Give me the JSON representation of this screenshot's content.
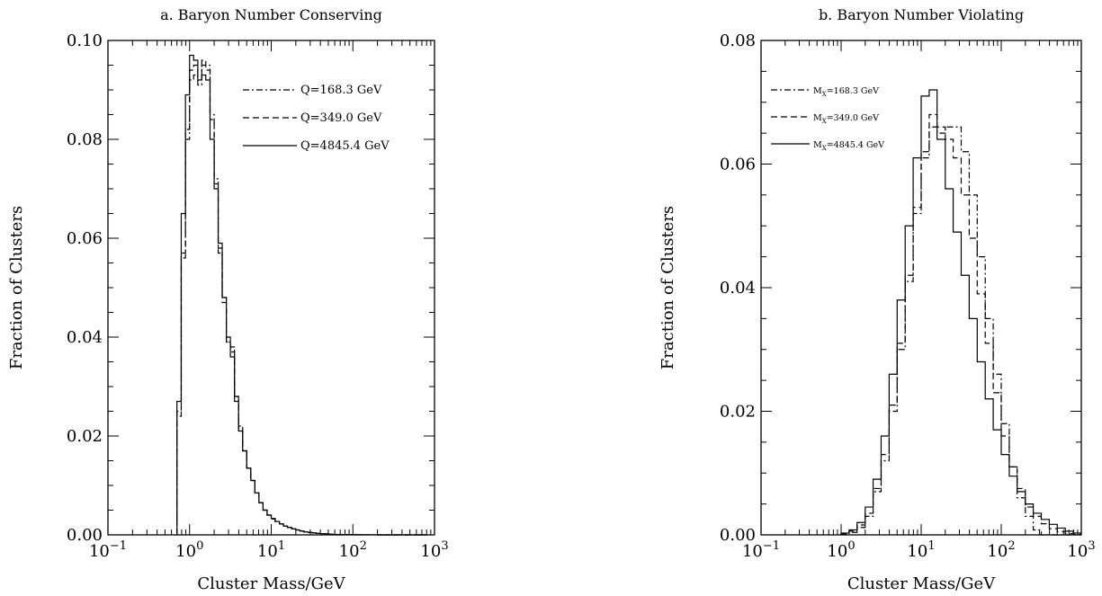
{
  "chart_data": [
    {
      "type": "line",
      "title": "a. Baryon Number Conserving",
      "xlabel": "Cluster Mass/GeV",
      "ylabel": "Fraction of Clusters",
      "xscale": "log",
      "xlim": [
        0.1,
        1000
      ],
      "ylim": [
        0,
        0.1
      ],
      "x_tick_labels": [
        {
          "base": "10",
          "exp": "−1"
        },
        {
          "base": "10",
          "exp": "0"
        },
        {
          "base": "10",
          "exp": "1"
        },
        {
          "base": "10",
          "exp": "2"
        },
        {
          "base": "10",
          "exp": "3"
        }
      ],
      "y_tick_labels": [
        "0.00",
        "0.02",
        "0.04",
        "0.06",
        "0.08",
        "0.10"
      ],
      "legend_position": "top-right",
      "series": [
        {
          "name": "Q=168.3 GeV",
          "style": "dash-dot",
          "x": [
            0.7,
            0.79,
            0.89,
            1.0,
            1.12,
            1.26,
            1.41,
            1.58,
            1.78,
            2.0,
            2.24,
            2.51,
            2.82,
            3.16,
            3.55,
            3.98,
            4.47,
            5.01,
            5.62,
            6.31,
            7.08,
            7.94,
            8.91,
            10.0,
            11.2,
            12.6,
            14.1,
            15.8,
            17.8,
            20.0,
            22.4,
            25.1,
            28.2,
            31.6,
            35.5,
            39.8,
            44.7,
            50.1,
            56.2,
            63.1,
            70.8,
            79.4,
            89.1,
            100,
            141,
            200,
            316,
            500
          ],
          "y": [
            0.024,
            0.056,
            0.08,
            0.092,
            0.093,
            0.091,
            0.095,
            0.095,
            0.085,
            0.072,
            0.057,
            0.048,
            0.039,
            0.038,
            0.028,
            0.022,
            0.017,
            0.0135,
            0.011,
            0.0085,
            0.0065,
            0.005,
            0.004,
            0.0032,
            0.0027,
            0.0022,
            0.0018,
            0.0015,
            0.0012,
            0.001,
            0.0008,
            0.0006,
            0.0005,
            0.0004,
            0.0003,
            0.00025,
            0.0002,
            0.00015,
            0.0001,
            8e-05,
            6e-05,
            5e-05,
            4e-05,
            2e-05,
            1e-05,
            5e-06,
            0.0,
            0.0
          ]
        },
        {
          "name": "Q=349.0 GeV",
          "style": "dashed",
          "x": [
            0.7,
            0.79,
            0.89,
            1.0,
            1.12,
            1.26,
            1.41,
            1.58,
            1.78,
            2.0,
            2.24,
            2.51,
            2.82,
            3.16,
            3.55,
            3.98,
            4.47,
            5.01,
            5.62,
            6.31,
            7.08,
            7.94,
            8.91,
            10.0,
            11.2,
            12.6,
            14.1,
            15.8,
            17.8,
            20.0,
            22.4,
            25.1,
            28.2,
            31.6,
            35.5,
            39.8,
            44.7,
            50.1,
            56.2,
            63.1,
            70.8,
            79.4,
            89.1,
            100,
            141,
            200,
            316,
            500
          ],
          "y": [
            0.025,
            0.057,
            0.082,
            0.094,
            0.095,
            0.093,
            0.096,
            0.094,
            0.084,
            0.071,
            0.058,
            0.047,
            0.039,
            0.037,
            0.028,
            0.021,
            0.017,
            0.0135,
            0.011,
            0.0085,
            0.0065,
            0.005,
            0.004,
            0.0033,
            0.0027,
            0.0022,
            0.0018,
            0.0015,
            0.0012,
            0.001,
            0.0008,
            0.0006,
            0.0005,
            0.0004,
            0.0003,
            0.00025,
            0.0002,
            0.00015,
            0.0001,
            8e-05,
            6e-05,
            5e-05,
            4e-05,
            2e-05,
            1e-05,
            5e-06,
            0.0,
            0.0
          ]
        },
        {
          "name": "Q=4845.4 GeV",
          "style": "solid",
          "x": [
            0.7,
            0.79,
            0.89,
            1.0,
            1.12,
            1.26,
            1.41,
            1.58,
            1.78,
            2.0,
            2.24,
            2.51,
            2.82,
            3.16,
            3.55,
            3.98,
            4.47,
            5.01,
            5.62,
            6.31,
            7.08,
            7.94,
            8.91,
            10.0,
            11.2,
            12.6,
            14.1,
            15.8,
            17.8,
            20.0,
            22.4,
            25.1,
            28.2,
            31.6,
            35.5,
            39.8,
            44.7,
            50.1,
            56.2,
            63.1,
            70.8,
            79.4,
            89.1,
            100,
            141,
            200,
            316,
            500
          ],
          "y": [
            0.027,
            0.065,
            0.089,
            0.097,
            0.096,
            0.092,
            0.093,
            0.092,
            0.08,
            0.07,
            0.059,
            0.048,
            0.04,
            0.036,
            0.027,
            0.021,
            0.017,
            0.0135,
            0.011,
            0.0085,
            0.0065,
            0.005,
            0.004,
            0.0033,
            0.0027,
            0.0022,
            0.0018,
            0.0015,
            0.0012,
            0.001,
            0.0008,
            0.0006,
            0.0005,
            0.0004,
            0.0003,
            0.00025,
            0.0002,
            0.00015,
            0.0001,
            8e-05,
            6e-05,
            5e-05,
            4e-05,
            2e-05,
            1e-05,
            5e-06,
            0.0,
            0.0
          ]
        }
      ]
    },
    {
      "type": "line",
      "title": "b. Baryon Number Violating",
      "xlabel": "Cluster Mass/GeV",
      "ylabel": "Fraction of Clusters",
      "xscale": "log",
      "xlim": [
        0.1,
        1000
      ],
      "ylim": [
        0,
        0.08
      ],
      "x_tick_labels": [
        {
          "base": "10",
          "exp": "−1"
        },
        {
          "base": "10",
          "exp": "0"
        },
        {
          "base": "10",
          "exp": "1"
        },
        {
          "base": "10",
          "exp": "2"
        },
        {
          "base": "10",
          "exp": "3"
        }
      ],
      "y_tick_labels": [
        "0.00",
        "0.02",
        "0.04",
        "0.06",
        "0.08"
      ],
      "legend_position": "top-left",
      "series": [
        {
          "name": "M",
          "name_subscript": "X",
          "name_suffix": "=168.3 GeV",
          "style": "dash-dot",
          "x": [
            1.0,
            1.26,
            1.58,
            2.0,
            2.51,
            3.16,
            3.98,
            5.01,
            6.31,
            7.94,
            10.0,
            12.6,
            15.8,
            20.0,
            25.1,
            31.6,
            39.8,
            50.1,
            63.1,
            79.4,
            100,
            126,
            158,
            200,
            251,
            316,
            398,
            501,
            631,
            794
          ],
          "y": [
            0.0001,
            0.0004,
            0.0012,
            0.003,
            0.007,
            0.012,
            0.02,
            0.03,
            0.041,
            0.052,
            0.061,
            0.066,
            0.065,
            0.066,
            0.066,
            0.062,
            0.055,
            0.045,
            0.035,
            0.026,
            0.018,
            0.011,
            0.006,
            0.003,
            0.0008,
            0.0,
            0.0,
            0.0,
            0.0,
            0.0
          ]
        },
        {
          "name": "M",
          "name_subscript": "X",
          "name_suffix": "=349.0 GeV",
          "style": "dashed",
          "x": [
            1.0,
            1.26,
            1.58,
            2.0,
            2.51,
            3.16,
            3.98,
            5.01,
            6.31,
            7.94,
            10.0,
            12.6,
            15.8,
            20.0,
            25.1,
            31.6,
            39.8,
            50.1,
            63.1,
            79.4,
            100,
            126,
            158,
            200,
            251,
            316,
            398,
            501,
            631,
            794
          ],
          "y": [
            0.0002,
            0.0006,
            0.0016,
            0.0035,
            0.0075,
            0.013,
            0.021,
            0.031,
            0.042,
            0.053,
            0.062,
            0.068,
            0.066,
            0.064,
            0.061,
            0.055,
            0.048,
            0.039,
            0.031,
            0.023,
            0.016,
            0.011,
            0.0075,
            0.0045,
            0.003,
            0.0018,
            0.001,
            0.0005,
            0.0002,
            0.0001
          ]
        },
        {
          "name": "M",
          "name_subscript": "X",
          "name_suffix": "=4845.4 GeV",
          "style": "solid",
          "x": [
            1.0,
            1.26,
            1.58,
            2.0,
            2.51,
            3.16,
            3.98,
            5.01,
            6.31,
            7.94,
            10.0,
            12.6,
            15.8,
            20.0,
            25.1,
            31.6,
            39.8,
            50.1,
            63.1,
            79.4,
            100,
            126,
            158,
            200,
            251,
            316,
            398,
            501,
            631,
            794
          ],
          "y": [
            0.0003,
            0.0008,
            0.002,
            0.0045,
            0.009,
            0.016,
            0.026,
            0.038,
            0.05,
            0.061,
            0.071,
            0.072,
            0.064,
            0.056,
            0.049,
            0.042,
            0.035,
            0.028,
            0.022,
            0.017,
            0.013,
            0.0095,
            0.007,
            0.005,
            0.0035,
            0.0025,
            0.0017,
            0.0011,
            0.0006,
            0.0003
          ]
        }
      ]
    }
  ]
}
